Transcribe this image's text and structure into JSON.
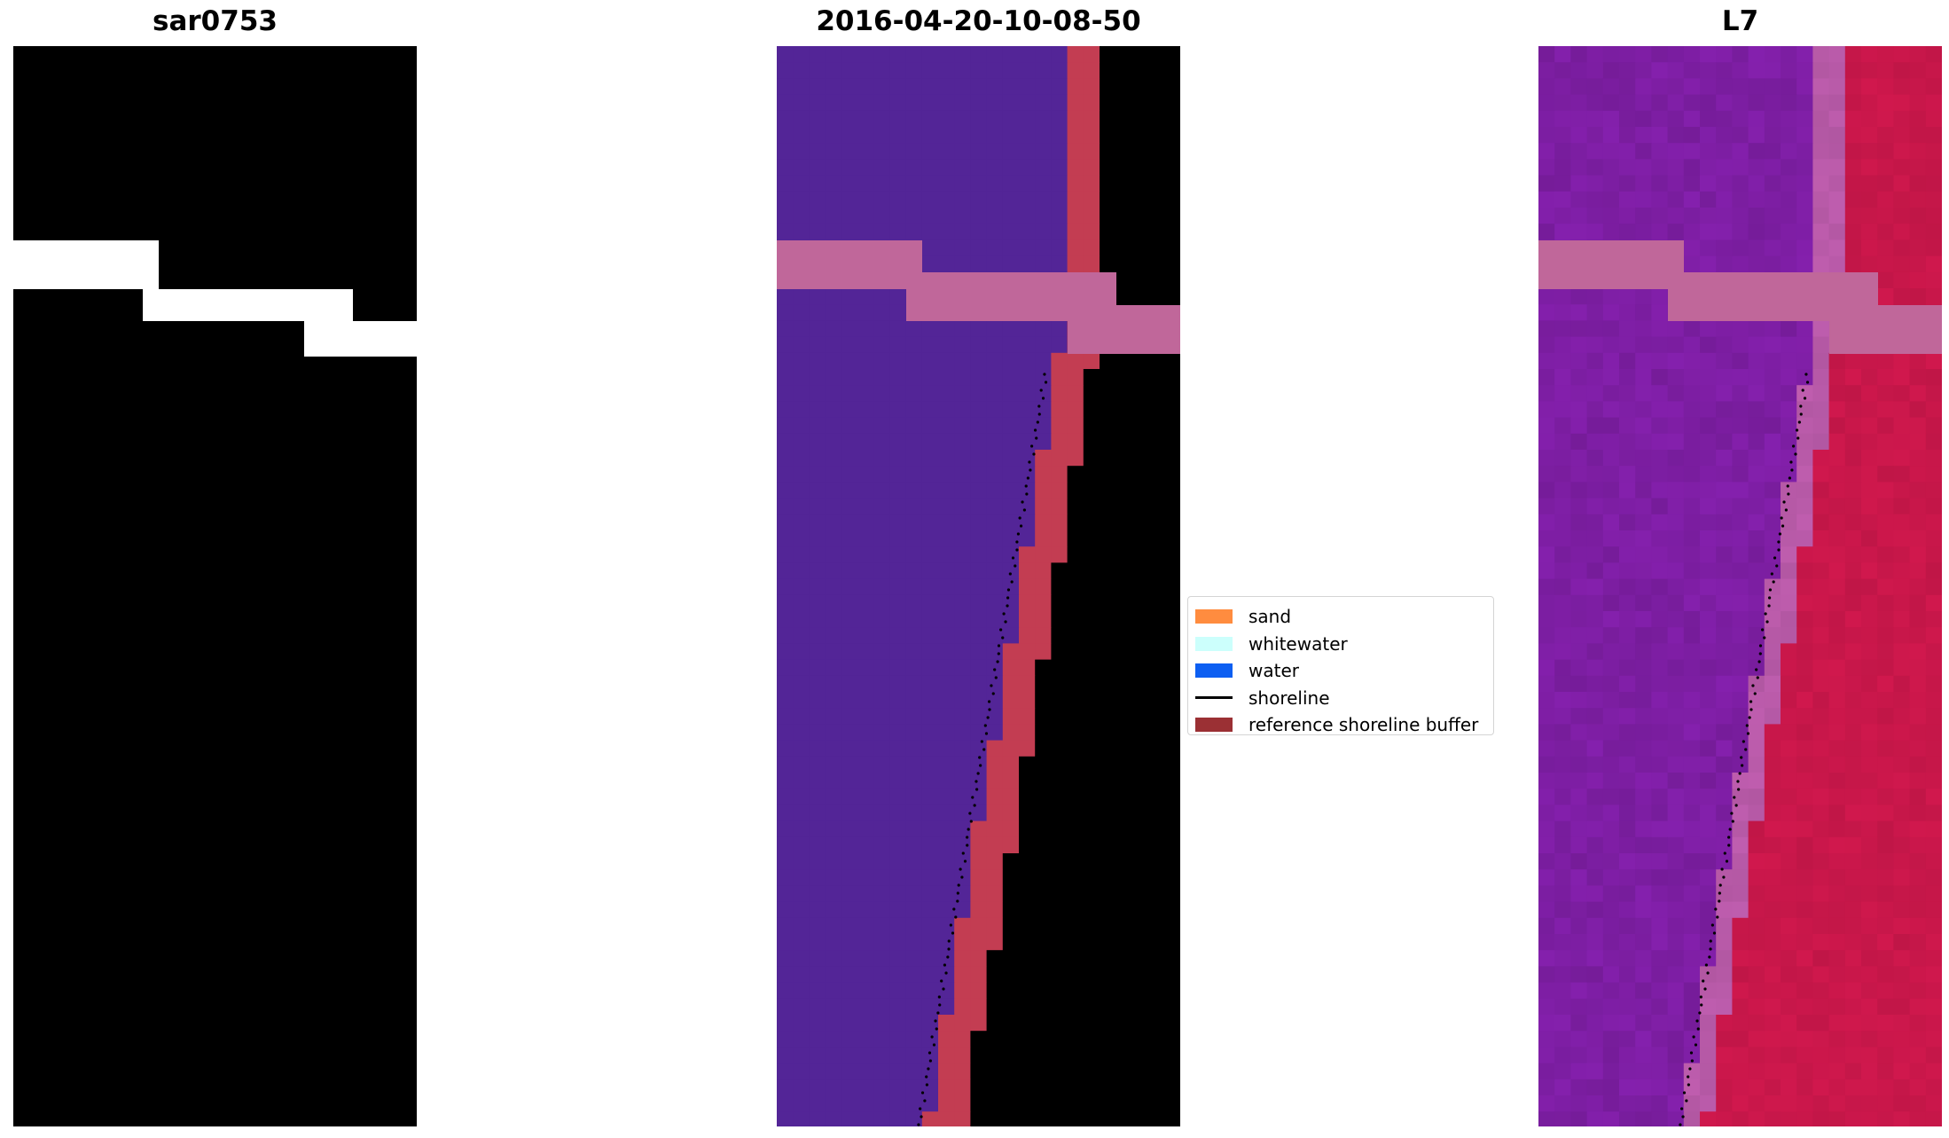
{
  "panels": {
    "rgb": {
      "title": "sar0753"
    },
    "classified": {
      "title": "2016-04-20-10-08-50"
    },
    "index": {
      "title": "L7"
    }
  },
  "legend": {
    "items": [
      {
        "label": "sand",
        "kind": "patch",
        "color": "#ff8c3f"
      },
      {
        "label": "whitewater",
        "kind": "patch",
        "color": "#ccfffc"
      },
      {
        "label": "water",
        "kind": "patch",
        "color": "#0d5ff2"
      },
      {
        "label": "shoreline",
        "kind": "line",
        "color": "#000000"
      },
      {
        "label": "reference shoreline buffer",
        "kind": "patch",
        "color": "#9b3034"
      }
    ]
  },
  "colors": {
    "rgb_land": "#2a72ab",
    "rgb_surf": "#e8ecf5",
    "rgb_sea": "#4a6fa6",
    "class_land": "#532597",
    "class_buffer": "#c33d52",
    "class_sea": "#7e3a78",
    "nodata_band": "#c0679a",
    "index_land": "#7d1ea3",
    "index_sea": "#c8174a"
  }
}
